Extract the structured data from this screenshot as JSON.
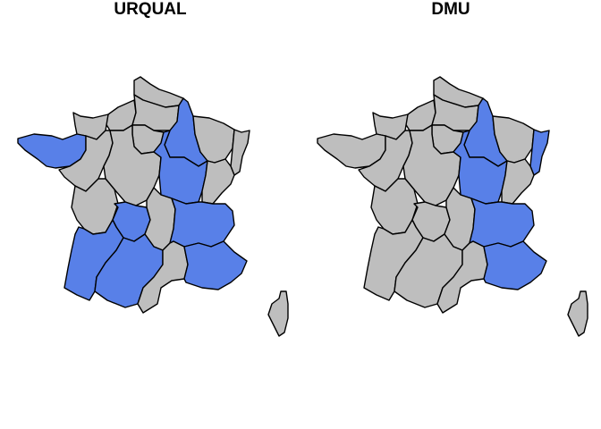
{
  "colors": {
    "highlight": "#5880E8",
    "default": "#BEBEBE",
    "border": "#000000",
    "background": "#FFFFFF"
  },
  "panels": [
    {
      "title": "URQUAL",
      "regions": {
        "nord": "default",
        "normandie_e": "default",
        "normandie_w": "default",
        "picardie": "default",
        "idf": "default",
        "champagne": "blue",
        "lorraine": "default",
        "alsace": "default",
        "bretagne": "blue",
        "pdl": "default",
        "centre": "default",
        "bourgogne": "blue",
        "franche": "default",
        "poitou": "default",
        "limousin": "blue",
        "auvergne": "default",
        "rhone": "blue",
        "aquitaine": "blue",
        "midi": "blue",
        "languedoc": "default",
        "paca": "blue",
        "corse": "default"
      }
    },
    {
      "title": "DMU",
      "regions": {
        "nord": "default",
        "normandie_e": "default",
        "normandie_w": "default",
        "picardie": "default",
        "idf": "default",
        "champagne": "blue",
        "lorraine": "default",
        "alsace": "blue",
        "bretagne": "default",
        "pdl": "default",
        "centre": "default",
        "bourgogne": "blue",
        "franche": "default",
        "poitou": "default",
        "limousin": "default",
        "auvergne": "default",
        "rhone": "blue",
        "aquitaine": "default",
        "midi": "default",
        "languedoc": "default",
        "paca": "blue",
        "corse": "default"
      }
    }
  ]
}
